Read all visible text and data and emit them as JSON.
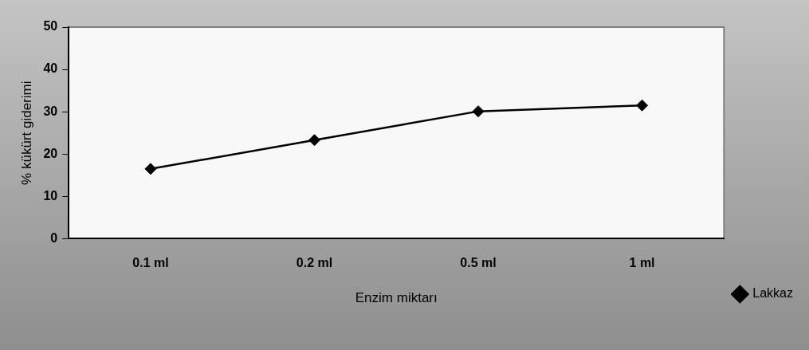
{
  "chart_data": {
    "type": "line",
    "xlabel": "Enzim miktarı",
    "ylabel": "% kükürt giderimi",
    "categories": [
      "0.1 ml",
      "0.2 ml",
      "0.5 ml",
      "1 ml"
    ],
    "series": [
      {
        "name": "Lakkaz",
        "color": "#000000",
        "values": [
          16.5,
          23.3,
          30.1,
          31.5
        ]
      }
    ],
    "ylim": [
      0,
      50
    ],
    "yticks": [
      0,
      10,
      20,
      30,
      40,
      50
    ],
    "grid": false,
    "legend": "bottom right",
    "marker": "diamond",
    "line_style": "solid"
  }
}
